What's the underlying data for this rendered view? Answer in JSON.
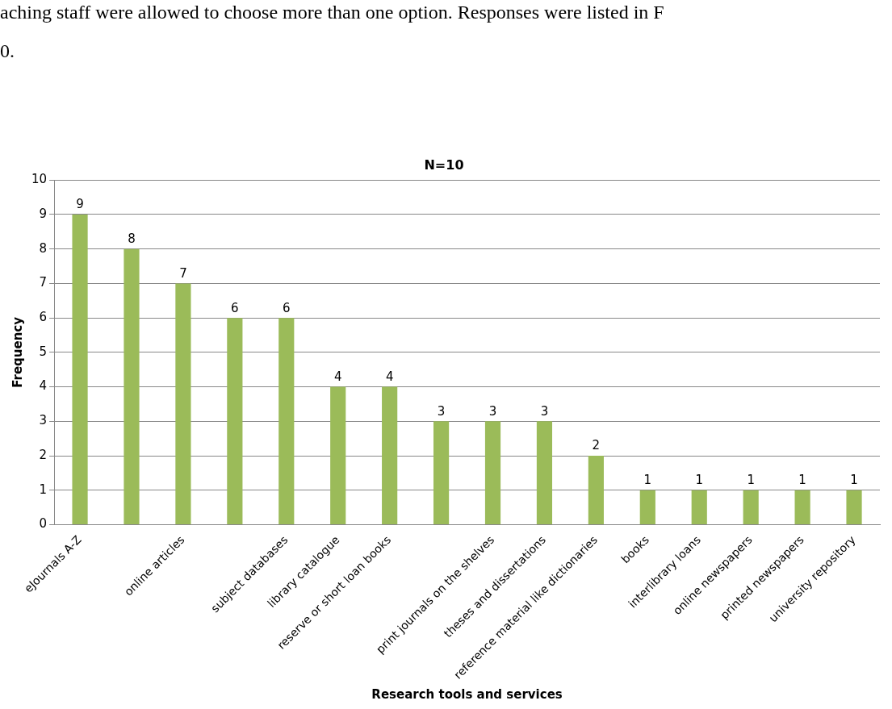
{
  "chart_data": {
    "type": "bar",
    "title": "N=10",
    "xlabel": "Research tools and services",
    "ylabel": "Frequency",
    "categories": [
      "eJournals A-Z",
      null,
      "online articles",
      null,
      "subject databases",
      "library catalogue",
      "reserve or short loan books",
      null,
      "print journals on the shelves",
      "theses and dissertations",
      "reference material like dictionaries",
      "books",
      "interlibrary loans",
      "online newspapers",
      "printed newspapers",
      "university repository"
    ],
    "values": [
      9,
      8,
      7,
      6,
      6,
      4,
      4,
      3,
      3,
      3,
      2,
      1,
      1,
      1,
      1,
      1
    ],
    "color": "#9bbb59",
    "ylim": [
      0,
      10
    ],
    "yticks": [
      0,
      1,
      2,
      3,
      4,
      5,
      6,
      7,
      8,
      9,
      10
    ],
    "grid": "y",
    "legend": false,
    "data_labels": true,
    "annotations": [
      "aching staff were allowed to choose more than one option.  Responses were listed in F",
      "0."
    ]
  }
}
